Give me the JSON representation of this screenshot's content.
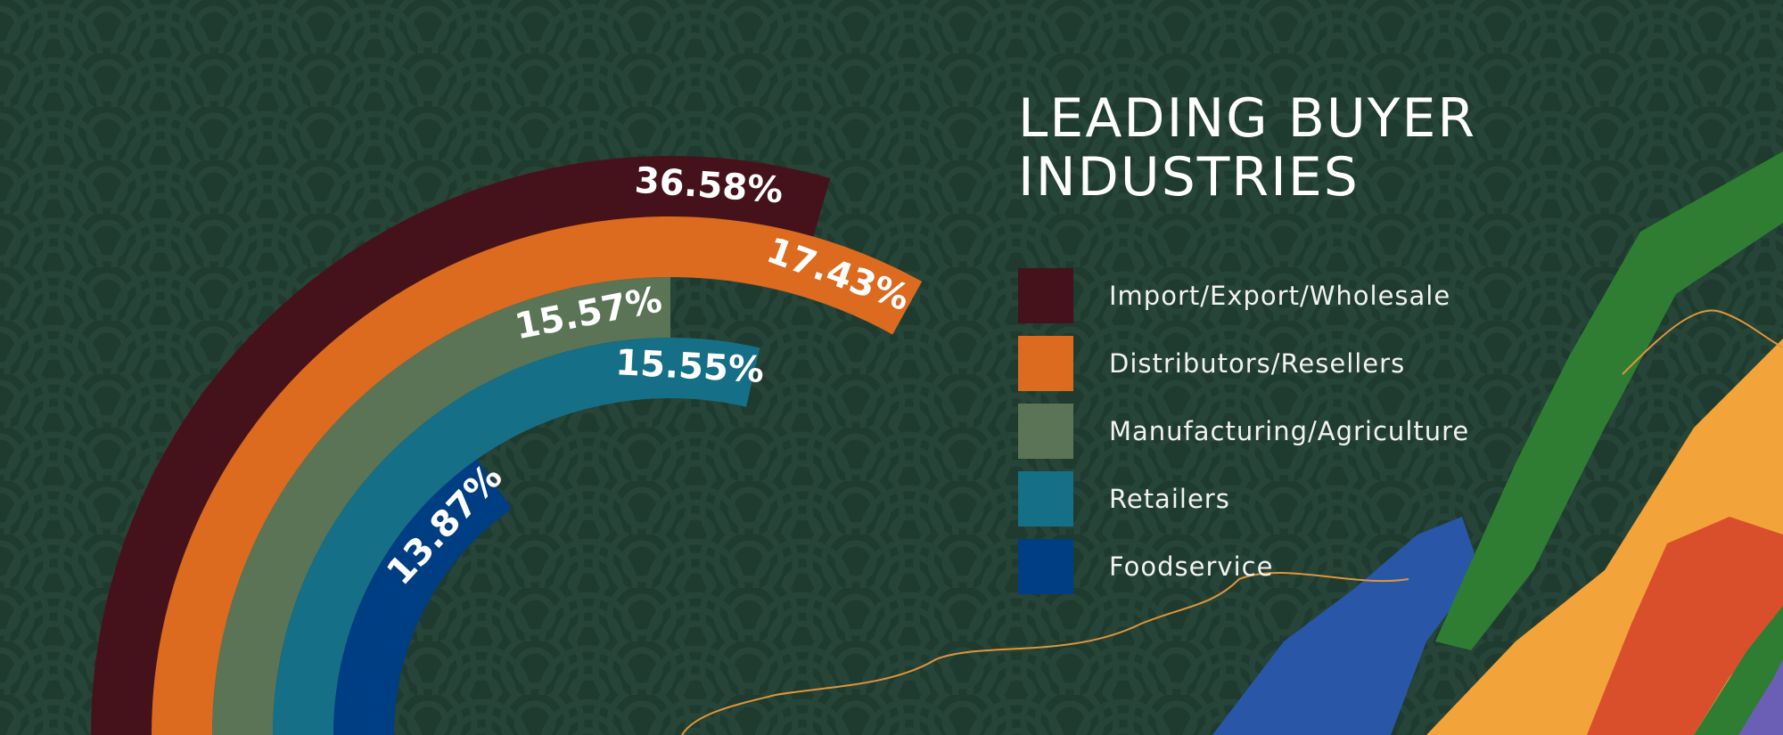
{
  "title": {
    "line1": "LEADING BUYER",
    "line2": "INDUSTRIES"
  },
  "legend": [
    {
      "label": "Import/Export/Wholesale",
      "color": "#45121b"
    },
    {
      "label": "Distributors/Resellers",
      "color": "#dc6a1f"
    },
    {
      "label": "Manufacturing/Agriculture",
      "color": "#5b7455"
    },
    {
      "label": "Retailers",
      "color": "#156f86"
    },
    {
      "label": "Foodservice",
      "color": "#003e83"
    }
  ],
  "colors": {
    "background": "#1f3b2f",
    "pattern": "#2b4a3d"
  },
  "chart_data": {
    "type": "radial-bar",
    "title": "LEADING BUYER INDUSTRIES",
    "categories": [
      "Import/Export/Wholesale",
      "Distributors/Resellers",
      "Manufacturing/Agriculture",
      "Retailers",
      "Foodservice"
    ],
    "values": [
      36.58,
      17.43,
      15.57,
      15.55,
      13.87
    ],
    "value_labels": [
      "36.58%",
      "17.43%",
      "15.57%",
      "15.55%",
      "13.87%"
    ],
    "colors": [
      "#45121b",
      "#dc6a1f",
      "#5b7455",
      "#156f86",
      "#003e83"
    ],
    "legend": "right"
  }
}
